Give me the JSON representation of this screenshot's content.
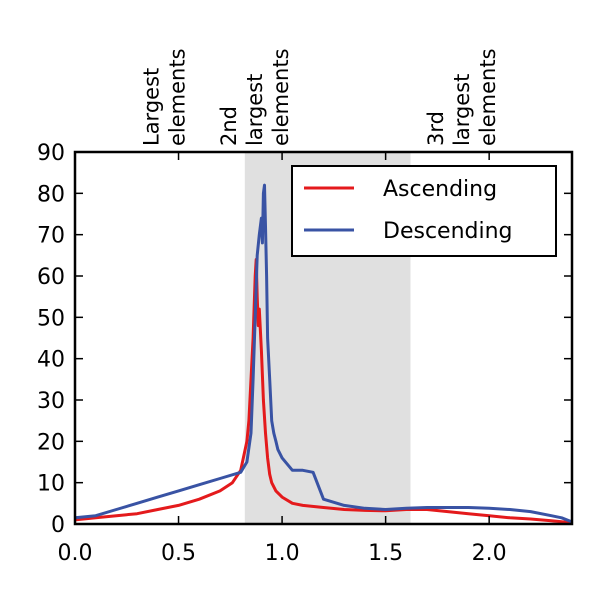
{
  "chart_data": {
    "type": "line",
    "title": "",
    "xlabel": "",
    "ylabel": "",
    "xlim": [
      0.0,
      2.4
    ],
    "ylim": [
      0,
      90
    ],
    "x_ticks": [
      "0.0",
      "0.5",
      "1.0",
      "1.5",
      "2.0"
    ],
    "y_ticks": [
      "0",
      "10",
      "20",
      "30",
      "40",
      "50",
      "60",
      "70",
      "80",
      "90"
    ],
    "x_tick_values": [
      0.0,
      0.5,
      1.0,
      1.5,
      2.0
    ],
    "y_tick_values": [
      0,
      10,
      20,
      30,
      40,
      50,
      60,
      70,
      80,
      90
    ],
    "grid": false,
    "legend_placement": "top-right",
    "shaded_region": {
      "x0": 0.82,
      "x1": 1.62,
      "color": "#e0e0e0"
    },
    "top_annotations": [
      {
        "x": 0.5,
        "lines": [
          "Largest",
          "elements"
        ]
      },
      {
        "x": 1.0,
        "lines": [
          "2nd",
          "largest",
          "elements"
        ]
      },
      {
        "x": 2.0,
        "lines": [
          "3rd",
          "largest",
          "elements"
        ]
      }
    ],
    "series": [
      {
        "name": "Ascending",
        "color": "#e41a1c",
        "x": [
          0.0,
          0.1,
          0.2,
          0.3,
          0.4,
          0.5,
          0.6,
          0.7,
          0.76,
          0.8,
          0.83,
          0.84,
          0.85,
          0.86,
          0.87,
          0.875,
          0.88,
          0.885,
          0.89,
          0.9,
          0.91,
          0.92,
          0.93,
          0.94,
          0.95,
          0.97,
          1.0,
          1.05,
          1.1,
          1.2,
          1.3,
          1.4,
          1.5,
          1.6,
          1.7,
          1.8,
          1.9,
          2.0,
          2.1,
          2.2,
          2.3,
          2.4
        ],
        "y": [
          1,
          1.5,
          2,
          2.5,
          3.5,
          4.5,
          6,
          8,
          10,
          13,
          20,
          25,
          35,
          45,
          60,
          64,
          55,
          48,
          52,
          42,
          30,
          22,
          16,
          12,
          10,
          8,
          6.5,
          5,
          4.5,
          4,
          3.5,
          3.3,
          3.2,
          3.5,
          3.5,
          3,
          2.5,
          2,
          1.5,
          1.2,
          0.8,
          0.3
        ]
      },
      {
        "name": "Descending",
        "color": "#3953a4",
        "x": [
          0.0,
          0.1,
          0.2,
          0.3,
          0.4,
          0.5,
          0.6,
          0.7,
          0.8,
          0.83,
          0.85,
          0.86,
          0.87,
          0.88,
          0.89,
          0.9,
          0.905,
          0.91,
          0.915,
          0.92,
          0.925,
          0.93,
          0.94,
          0.95,
          0.96,
          0.97,
          0.98,
          1.0,
          1.05,
          1.1,
          1.15,
          1.2,
          1.3,
          1.4,
          1.5,
          1.6,
          1.7,
          1.8,
          1.9,
          2.0,
          2.1,
          2.2,
          2.3,
          2.35,
          2.4
        ],
        "y": [
          1.5,
          2,
          3.5,
          5,
          6.5,
          8,
          9.5,
          11,
          12.5,
          15,
          22,
          35,
          50,
          65,
          70,
          74,
          68,
          80,
          82,
          72,
          60,
          45,
          35,
          25,
          22,
          20,
          18,
          16,
          13,
          13,
          12.5,
          6,
          4.5,
          3.8,
          3.5,
          3.8,
          4,
          4,
          4,
          3.8,
          3.5,
          3,
          2,
          1.5,
          0.5
        ]
      }
    ]
  }
}
